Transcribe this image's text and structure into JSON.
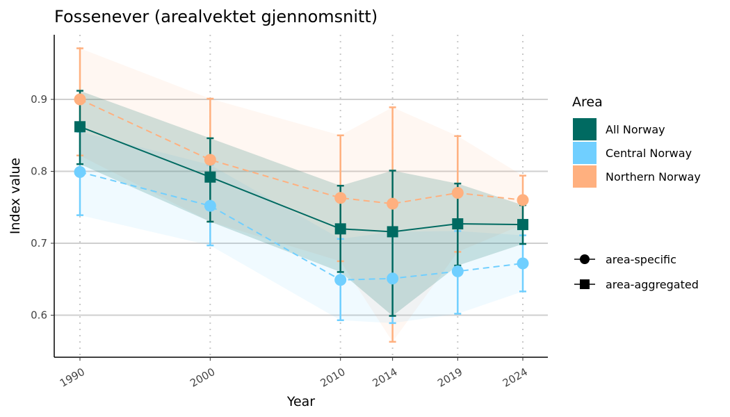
{
  "chart_data": {
    "type": "line",
    "title": "Fossenever (arealvektet gjennomsnitt)",
    "xlabel": "Year",
    "ylabel": "Index value",
    "x": [
      1990,
      2000,
      2010,
      2014,
      2019,
      2024
    ],
    "x_tick_labels": [
      "1990",
      "2000",
      "2010",
      "2014",
      "2019",
      "2024"
    ],
    "y_ticks": [
      0.6,
      0.7,
      0.8,
      0.9
    ],
    "y_tick_labels": [
      "0.6",
      "0.7",
      "0.8",
      "0.9"
    ],
    "xlim": [
      1988,
      2026
    ],
    "ylim": [
      0.545,
      0.99
    ],
    "grid": "horizontal major lines, dotted vertical lines at years",
    "legend_title": "Area",
    "legend_placement": "right",
    "shape_legend": [
      {
        "label": "area-specific",
        "shape": "circle"
      },
      {
        "label": "area-aggregated",
        "shape": "square"
      }
    ],
    "series": [
      {
        "name": "All Norway",
        "color": "#006A61",
        "shape": "square",
        "linestyle": "solid",
        "values": [
          0.862,
          0.792,
          0.72,
          0.716,
          0.727,
          0.726
        ],
        "lower": [
          0.81,
          0.73,
          0.66,
          0.599,
          0.669,
          0.699
        ],
        "upper": [
          0.912,
          0.846,
          0.78,
          0.801,
          0.783,
          0.753
        ]
      },
      {
        "name": "Central Norway",
        "color": "#70CFFF",
        "shape": "circle",
        "linestyle": "dashed",
        "values": [
          0.799,
          0.752,
          0.649,
          0.651,
          0.661,
          0.672
        ],
        "lower": [
          0.739,
          0.697,
          0.593,
          0.589,
          0.602,
          0.633
        ],
        "upper": [
          0.855,
          0.809,
          0.706,
          0.716,
          0.717,
          0.711
        ]
      },
      {
        "name": "Northern Norway",
        "color": "#FFB07F",
        "shape": "circle",
        "linestyle": "dashed",
        "values": [
          0.9,
          0.816,
          0.763,
          0.755,
          0.77,
          0.76
        ],
        "lower": [
          0.822,
          0.73,
          0.675,
          0.563,
          0.688,
          0.726
        ],
        "upper": [
          0.971,
          0.901,
          0.85,
          0.889,
          0.849,
          0.794
        ]
      }
    ]
  }
}
